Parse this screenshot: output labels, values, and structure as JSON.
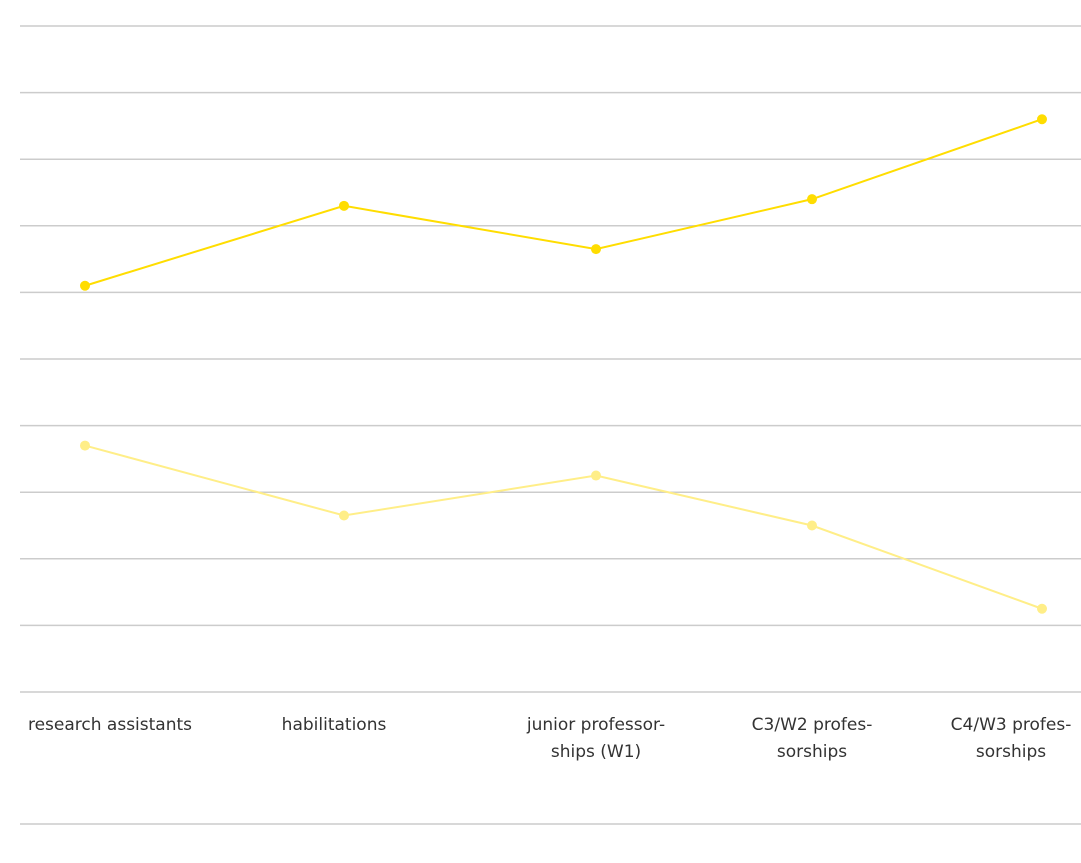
{
  "chart_data": {
    "type": "line",
    "title": "",
    "xlabel": "",
    "ylabel": "",
    "categories": [
      [
        "research assistants"
      ],
      [
        "habilitations"
      ],
      [
        "junior professor-",
        "ships (W1)"
      ],
      [
        "C3/W2 profes-",
        "sorships"
      ],
      [
        "C4/W3 profes-",
        "sorships"
      ]
    ],
    "ylim": [
      0,
      10
    ],
    "grid": true,
    "y_ticks_labeled": false,
    "legend": "none",
    "series": [
      {
        "values": [
          6.1,
          7.3,
          6.65,
          7.4,
          8.6
        ],
        "color": "#FFDD00"
      },
      {
        "values": [
          3.7,
          2.65,
          3.25,
          2.5,
          1.25
        ],
        "color": "#FFEE88"
      }
    ],
    "colors": {
      "grid": "#CCCCCC",
      "text": "#333333"
    }
  }
}
